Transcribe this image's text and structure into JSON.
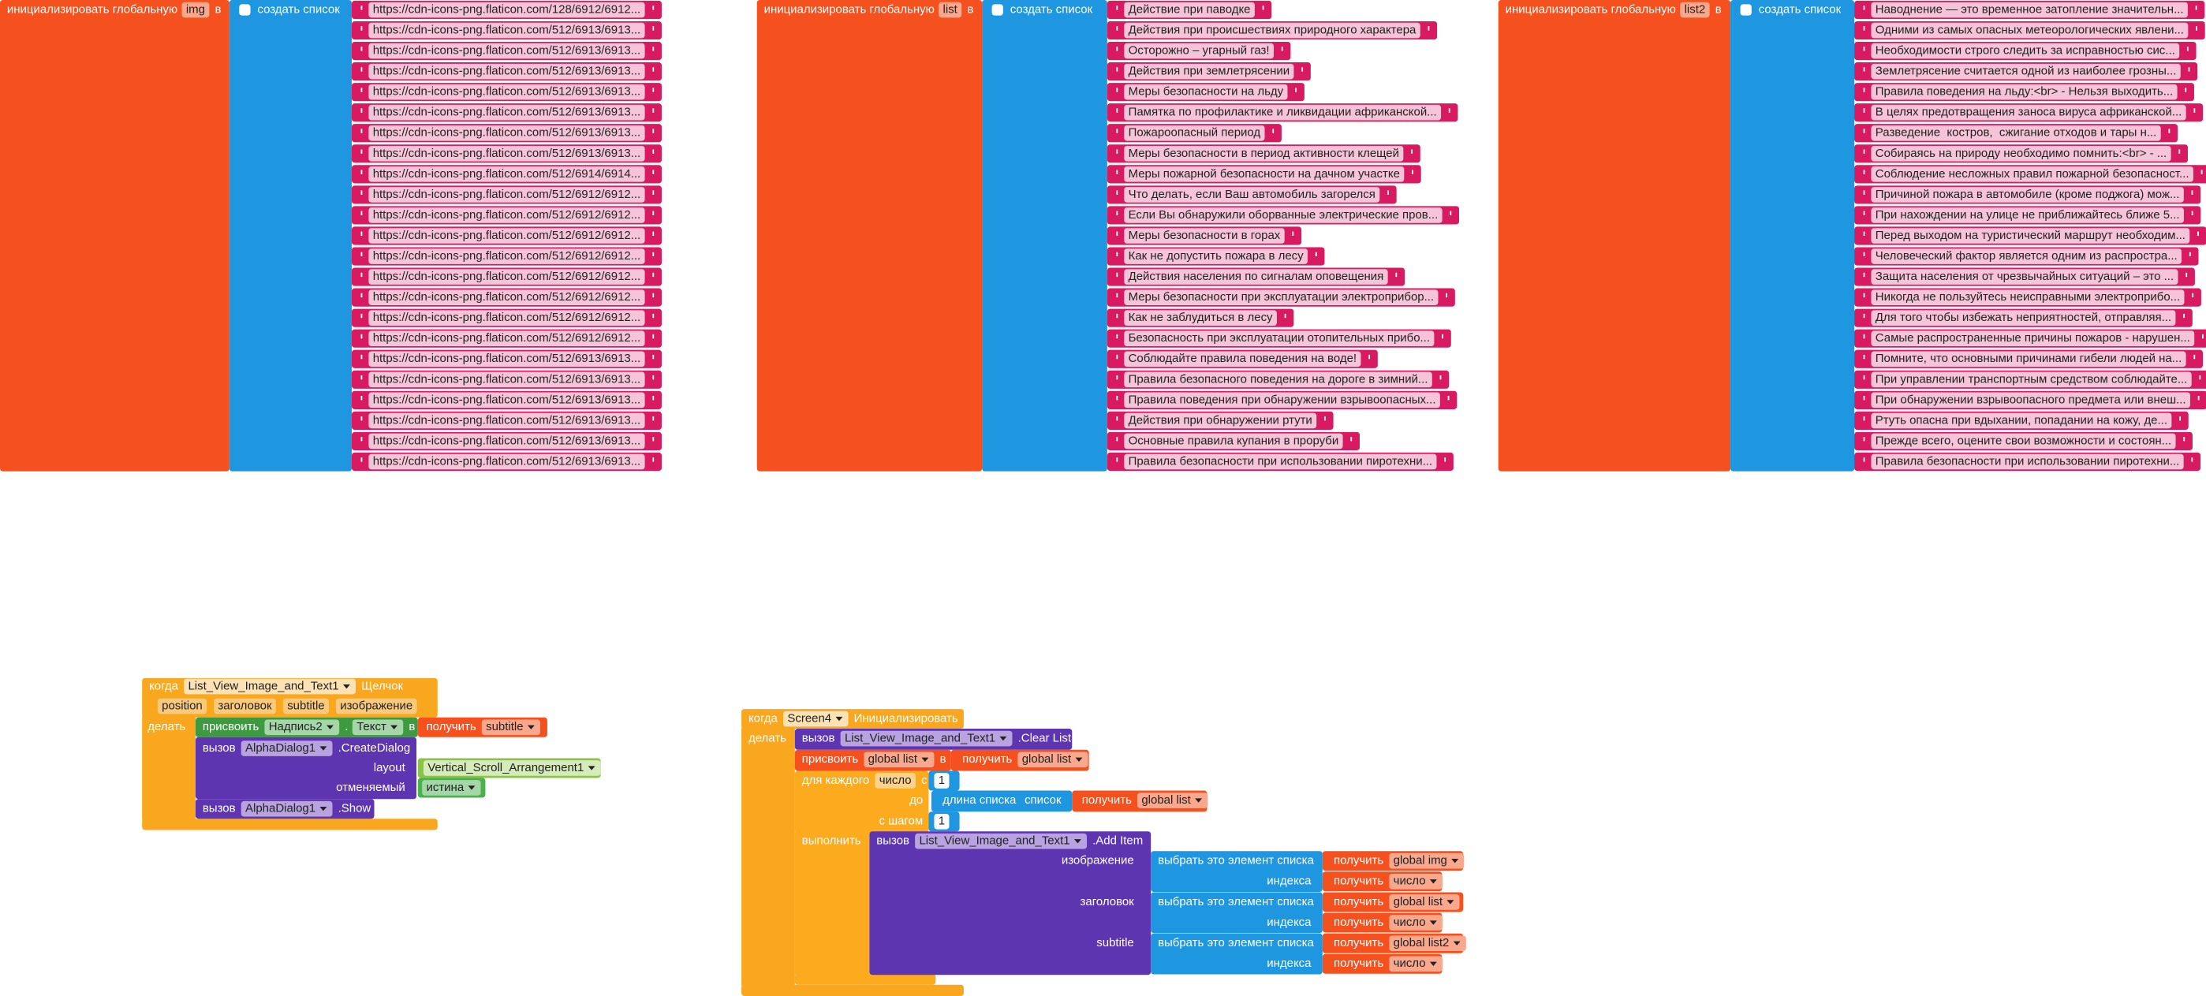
{
  "globals": [
    {
      "label": "инициализировать глобальную",
      "name": "img",
      "to": "в",
      "make_list": "создать список",
      "items": [
        "https://cdn-icons-png.flaticon.com/128/6912/6912...",
        "https://cdn-icons-png.flaticon.com/512/6913/6913...",
        "https://cdn-icons-png.flaticon.com/512/6913/6913...",
        "https://cdn-icons-png.flaticon.com/512/6913/6913...",
        "https://cdn-icons-png.flaticon.com/512/6913/6913...",
        "https://cdn-icons-png.flaticon.com/512/6913/6913...",
        "https://cdn-icons-png.flaticon.com/512/6913/6913...",
        "https://cdn-icons-png.flaticon.com/512/6913/6913...",
        "https://cdn-icons-png.flaticon.com/512/6914/6914...",
        "https://cdn-icons-png.flaticon.com/512/6912/6912...",
        "https://cdn-icons-png.flaticon.com/512/6912/6912...",
        "https://cdn-icons-png.flaticon.com/512/6912/6912...",
        "https://cdn-icons-png.flaticon.com/512/6912/6912...",
        "https://cdn-icons-png.flaticon.com/512/6912/6912...",
        "https://cdn-icons-png.flaticon.com/512/6912/6912...",
        "https://cdn-icons-png.flaticon.com/512/6912/6912...",
        "https://cdn-icons-png.flaticon.com/512/6912/6912...",
        "https://cdn-icons-png.flaticon.com/512/6913/6913...",
        "https://cdn-icons-png.flaticon.com/512/6913/6913...",
        "https://cdn-icons-png.flaticon.com/512/6913/6913...",
        "https://cdn-icons-png.flaticon.com/512/6913/6913...",
        "https://cdn-icons-png.flaticon.com/512/6913/6913...",
        "https://cdn-icons-png.flaticon.com/512/6913/6913..."
      ]
    },
    {
      "label": "инициализировать глобальную",
      "name": "list",
      "to": "в",
      "make_list": "создать список",
      "items": [
        "Действие при паводке",
        "Действия при происшествиях природного характера",
        "Осторожно – угарный газ!",
        "Действия при землетрясении",
        "Меры безопасности на льду",
        "Памятка по профилактике и ликвидации африканской...",
        "Пожароопасный период",
        "Меры безопасности в период активности клещей",
        "Меры пожарной безопасности на дачном участке",
        "Что делать, если Ваш автомобиль загорелся",
        "Если Вы обнаружили оборванные электрические пров...",
        "Меры безопасности в горах",
        "Как не допустить пожара в лесу",
        "Действия населения по сигналам оповещения",
        "Меры безопасности при эксплуатации электроприбор...",
        "Как не заблудиться в лесу",
        "Безопасность при эксплуатации отопительных прибо...",
        "Соблюдайте правила поведения на воде!",
        "Правила безопасного поведения на дороге в зимний...",
        "Правила поведения при обнаружении взрывоопасных...",
        "Действия при обнаружении ртути",
        "Основные правила купания в проруби",
        "Правила безопасности при использовании пиротехни..."
      ]
    },
    {
      "label": "инициализировать глобальную",
      "name": "list2",
      "to": "в",
      "make_list": "создать список",
      "items": [
        "Наводнение — это временное затопление значительн...",
        "Одними из самых опасных метеорологических явлени...",
        "Необходимости строго следить за исправностью сис...",
        "Землетрясение считается одной из наиболее грозны...",
        "Правила поведения на льду:<br> - Нельзя выходить...",
        "В целях предотвращения заноса вируса африканской...",
        "Разведение  костров,  сжигание отходов и тары н...",
        "Собираясь на природу необходимо помнить:<br> - ...",
        "Соблюдение несложных правил пожарной безопасност...",
        "Причиной пожара в автомобиле (кроме поджога) мож...",
        "При нахождении на улице не приближайтесь ближе 5...",
        "Перед выходом на туристический маршрут необходим...",
        "Человеческий фактор является одним из распростра...",
        "Защита населения от чрезвычайных ситуаций – это ...",
        "Никогда не пользуйтесь неисправными электроприбо...",
        "Для того чтобы избежать неприятностей, отправляя...",
        "Самые распространенные причины пожаров - нарушен...",
        "Помните, что основными причинами гибели людей на...",
        "При управлении транспортным средством соблюдайте...",
        "При обнаружении взрывоопасного предмета или внеш...",
        "Ртуть опасна при вдыхании, попадании на кожу, де...",
        "Прежде всего, оцените свои возможности и состоян...",
        "Правила безопасности при использовании пиротехни..."
      ]
    }
  ],
  "event_click": {
    "when": "когда",
    "component": "List_View_Image_and_Text1",
    "event": "Щелчок",
    "params": [
      "position",
      "заголовок",
      "subtitle",
      "изображение"
    ],
    "do": "делать",
    "set": {
      "label": "присвоить",
      "component": "Надпись2",
      "dot": ".",
      "property": "Текст",
      "to": "в",
      "get": "получить",
      "var": "subtitle"
    },
    "create_dialog": {
      "call": "вызов",
      "component": "AlphaDialog1",
      "method": ".CreateDialog",
      "layout_label": "layout",
      "layout_value": "Vertical_Scroll_Arrangement1",
      "cancelable_label": "отменяемый",
      "cancelable_value": "истина"
    },
    "show": {
      "call": "вызов",
      "component": "AlphaDialog1",
      "method": ".Show"
    }
  },
  "event_init": {
    "when": "когда",
    "component": "Screen4",
    "event": "Инициализировать",
    "do": "делать",
    "clear": {
      "call": "вызов",
      "component": "List_View_Image_and_Text1",
      "method": ".Clear List"
    },
    "set": {
      "label": "присвоить",
      "var": "global list",
      "to": "в",
      "get": "получить",
      "value": "global list"
    },
    "for": {
      "label": "для каждого",
      "var": "число",
      "from_label": "с",
      "from": 1,
      "to_label": "до",
      "length": "длина списка",
      "list_label": "список",
      "get": "получить",
      "list": "global list",
      "step_label": "с шагом",
      "step": 1,
      "do": "выполнить"
    },
    "add_item": {
      "call": "вызов",
      "component": "List_View_Image_and_Text1",
      "method": ".Add Item",
      "args": [
        {
          "name": "изображение",
          "select": "выбрать это элемент списка",
          "get": "получить",
          "list": "global img",
          "index_label": "индекса",
          "index_get": "получить",
          "index_var": "число"
        },
        {
          "name": "заголовок",
          "select": "выбрать это элемент списка",
          "get": "получить",
          "list": "global list",
          "index_label": "индекса",
          "index_get": "получить",
          "index_var": "число"
        },
        {
          "name": "subtitle",
          "select": "выбрать это элемент списка",
          "get": "получить",
          "list": "global list2",
          "index_label": "индекса",
          "index_get": "получить",
          "index_var": "число"
        }
      ]
    }
  }
}
